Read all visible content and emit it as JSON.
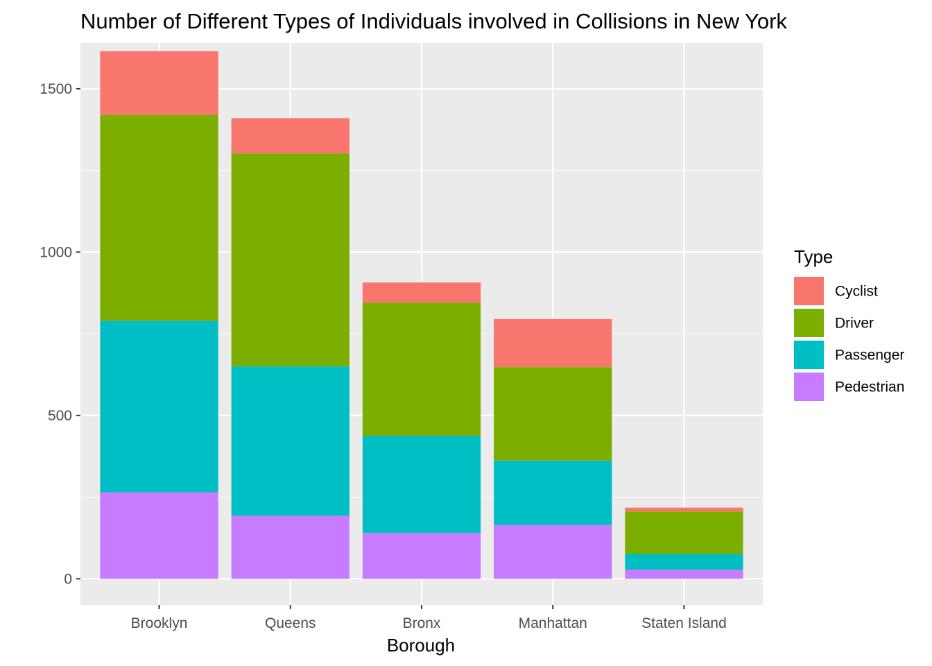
{
  "chart_data": {
    "type": "bar",
    "stacked": true,
    "title": "Number of Different Types of Individuals involved in Collisions in New York",
    "xlabel": "Borough",
    "ylabel": "",
    "ylim": [
      -80,
      1640
    ],
    "yticks": [
      0,
      500,
      1000,
      1500
    ],
    "grid": true,
    "legend_position": "right",
    "legend_title": "Type",
    "categories": [
      "Brooklyn",
      "Queens",
      "Bronx",
      "Manhattan",
      "Staten Island"
    ],
    "series": [
      {
        "name": "Pedestrian",
        "color": "#C77CFF",
        "values": [
          265,
          193,
          140,
          165,
          28
        ]
      },
      {
        "name": "Passenger",
        "color": "#00BFC4",
        "values": [
          525,
          457,
          298,
          197,
          48
        ]
      },
      {
        "name": "Driver",
        "color": "#7CAE00",
        "values": [
          630,
          652,
          407,
          286,
          130
        ]
      },
      {
        "name": "Cyclist",
        "color": "#F8766D",
        "values": [
          195,
          108,
          62,
          147,
          12
        ]
      }
    ],
    "legend_order": [
      "Cyclist",
      "Driver",
      "Passenger",
      "Pedestrian"
    ],
    "colors": {
      "panel_background": "#EBEBEB",
      "grid": "#FFFFFF",
      "tick": "#333333"
    }
  }
}
